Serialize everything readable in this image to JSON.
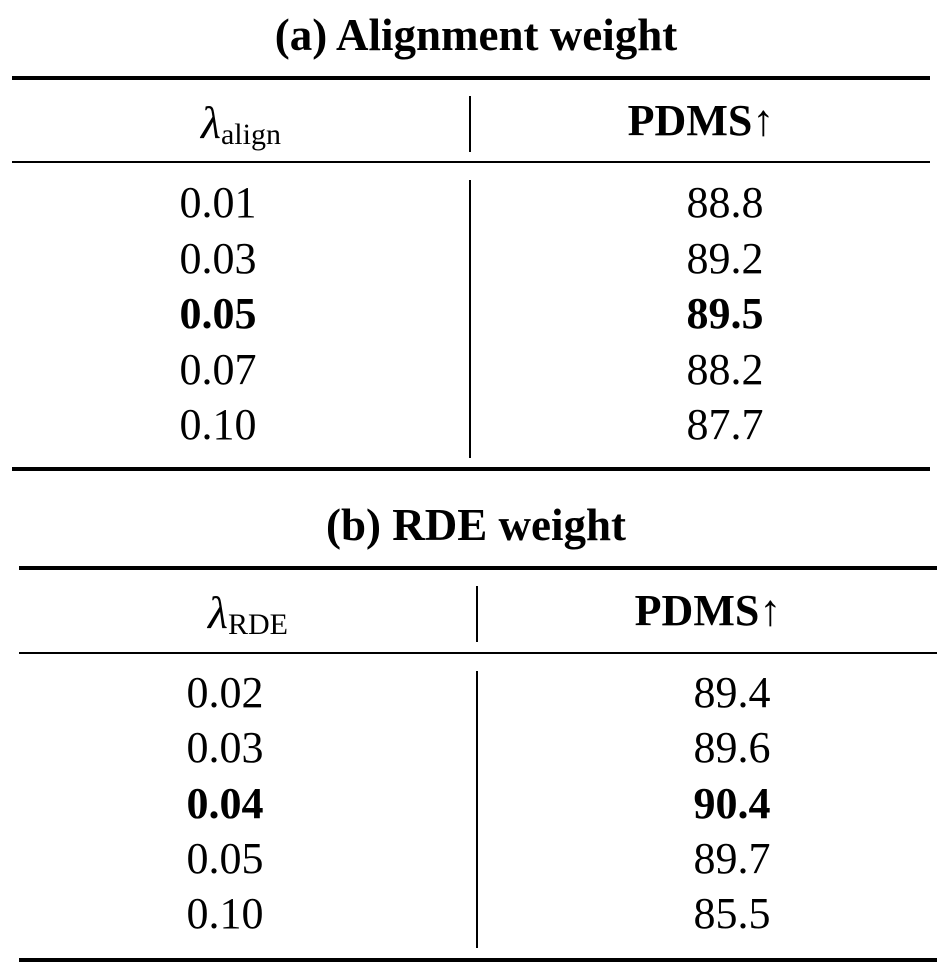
{
  "tables": [
    {
      "caption": "(a) Alignment weight",
      "header": {
        "param_symbol": "λ",
        "param_subscript": "align",
        "metric": "PDMS",
        "metric_arrow": "↑"
      },
      "rows": [
        {
          "param": "0.01",
          "pdms": "88.8",
          "best": false
        },
        {
          "param": "0.03",
          "pdms": "89.2",
          "best": false
        },
        {
          "param": "0.05",
          "pdms": "89.5",
          "best": true
        },
        {
          "param": "0.07",
          "pdms": "88.2",
          "best": false
        },
        {
          "param": "0.10",
          "pdms": "87.7",
          "best": false
        }
      ]
    },
    {
      "caption": "(b) RDE weight",
      "header": {
        "param_symbol": "λ",
        "param_subscript": "RDE",
        "metric": "PDMS",
        "metric_arrow": "↑"
      },
      "rows": [
        {
          "param": "0.02",
          "pdms": "89.4",
          "best": false
        },
        {
          "param": "0.03",
          "pdms": "89.6",
          "best": false
        },
        {
          "param": "0.04",
          "pdms": "90.4",
          "best": true
        },
        {
          "param": "0.05",
          "pdms": "89.7",
          "best": false
        },
        {
          "param": "0.10",
          "pdms": "85.5",
          "best": false
        }
      ]
    }
  ]
}
